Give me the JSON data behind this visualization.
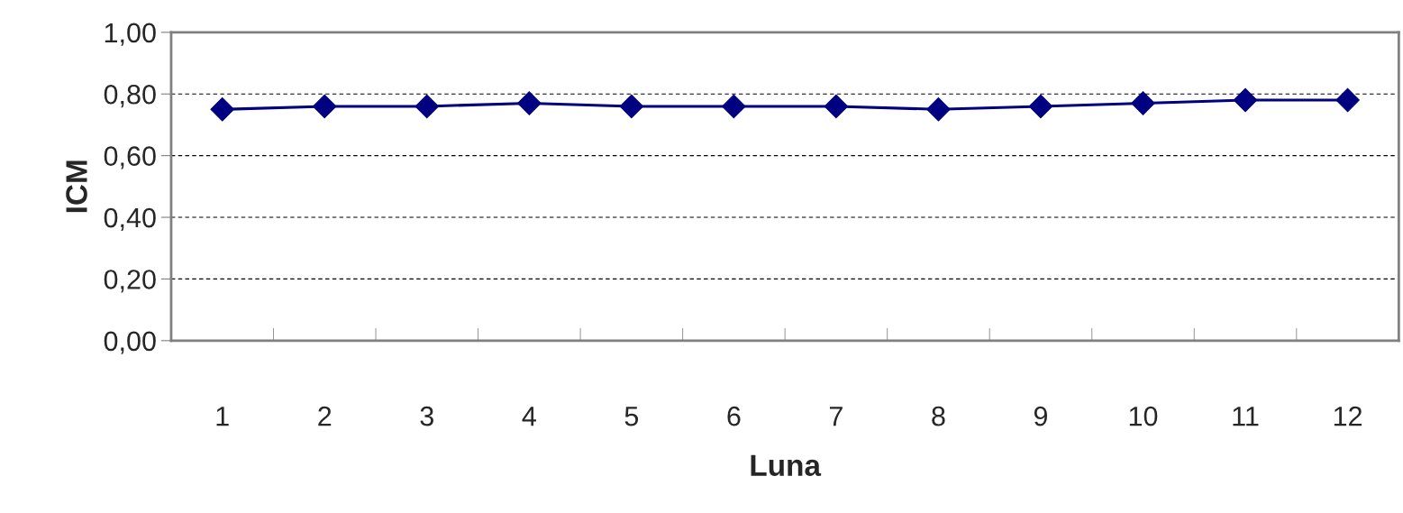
{
  "chart_data": {
    "type": "line",
    "xlabel": "Luna",
    "ylabel": "ICM",
    "categories": [
      "1",
      "2",
      "3",
      "4",
      "5",
      "6",
      "7",
      "8",
      "9",
      "10",
      "11",
      "12"
    ],
    "series": [
      {
        "color": "#000080",
        "values": [
          0.75,
          0.76,
          0.76,
          0.77,
          0.76,
          0.76,
          0.76,
          0.75,
          0.76,
          0.77,
          0.78,
          0.78
        ]
      }
    ],
    "ylim": [
      0,
      1
    ],
    "yticks": [
      {
        "value": 0,
        "label": "0,00"
      },
      {
        "value": 0.2,
        "label": "0,20"
      },
      {
        "value": 0.4,
        "label": "0,40"
      },
      {
        "value": 0.6,
        "label": "0,60"
      },
      {
        "value": 0.8,
        "label": "0,80"
      },
      {
        "value": 1,
        "label": "1,00"
      }
    ],
    "grid": "y",
    "marker": "diamond",
    "line_style": "solid",
    "legend": false
  }
}
